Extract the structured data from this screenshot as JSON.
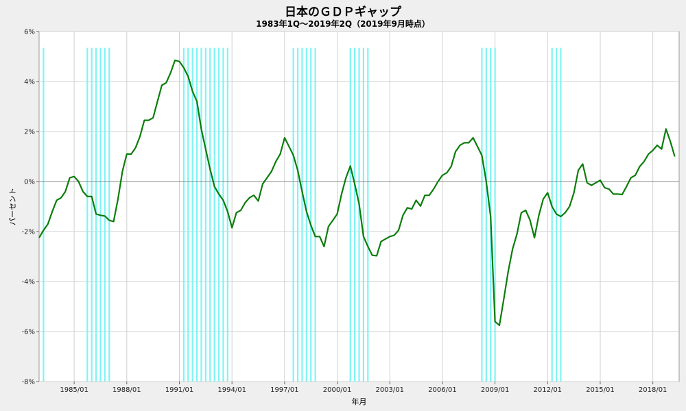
{
  "chart_data": {
    "type": "line",
    "title": "日本のＧＤＰギャップ",
    "subtitle": "1983年1Q～2019年2Q（2019年9月時点）",
    "xlabel": "年月",
    "ylabel": "パーセント",
    "ylim": [
      -8,
      6
    ],
    "yticks": [
      6,
      4,
      2,
      0,
      -2,
      -4,
      -6,
      -8
    ],
    "ytick_labels": [
      "6%",
      "4%",
      "2%",
      "0%",
      "-2%",
      "-4%",
      "-6%",
      "-8%"
    ],
    "xlim": [
      1983.0,
      2019.5
    ],
    "xticks": [
      1985,
      1988,
      1991,
      1994,
      1997,
      2000,
      2003,
      2006,
      2009,
      2012,
      2015,
      2018
    ],
    "xtick_labels": [
      "1985/01",
      "1988/01",
      "1991/01",
      "1994/01",
      "1997/01",
      "2000/01",
      "2003/01",
      "2006/01",
      "2009/01",
      "2012/01",
      "2015/01",
      "2018/01"
    ],
    "grid": true,
    "colors": {
      "line": "#0a7d0a",
      "band": "#7ff4f4",
      "zero": "#888888",
      "grid": "#d0d0d0"
    },
    "recession_quarters": [
      1983.25,
      1985.75,
      1986.0,
      1986.25,
      1986.5,
      1986.75,
      1987.0,
      1991.25,
      1991.5,
      1991.75,
      1992.0,
      1992.25,
      1992.5,
      1992.75,
      1993.0,
      1993.25,
      1993.5,
      1993.75,
      1997.5,
      1997.75,
      1998.0,
      1998.25,
      1998.5,
      1998.75,
      2000.75,
      2001.0,
      2001.25,
      2001.5,
      2001.75,
      2008.25,
      2008.5,
      2008.75,
      2009.0,
      2012.25,
      2012.5,
      2012.75
    ],
    "series": [
      {
        "x": [
          1983.0,
          1983.25,
          1983.5,
          1983.75,
          1984.0,
          1984.25,
          1984.5,
          1984.75,
          1985.0,
          1985.25,
          1985.5,
          1985.75,
          1986.0,
          1986.25,
          1986.5,
          1986.75,
          1987.0,
          1987.25,
          1987.5,
          1987.75,
          1988.0,
          1988.25,
          1988.5,
          1988.75,
          1989.0,
          1989.25,
          1989.5,
          1989.75,
          1990.0,
          1990.25,
          1990.5,
          1990.75,
          1991.0,
          1991.25,
          1991.5,
          1991.75,
          1992.0,
          1992.25,
          1992.5,
          1992.75,
          1993.0,
          1993.25,
          1993.5,
          1993.75,
          1994.0,
          1994.25,
          1994.5,
          1994.75,
          1995.0,
          1995.25,
          1995.5,
          1995.75,
          1996.0,
          1996.25,
          1996.5,
          1996.75,
          1997.0,
          1997.25,
          1997.5,
          1997.75,
          1998.0,
          1998.25,
          1998.5,
          1998.75,
          1999.0,
          1999.25,
          1999.5,
          1999.75,
          2000.0,
          2000.25,
          2000.5,
          2000.75,
          2001.0,
          2001.25,
          2001.5,
          2001.75,
          2002.0,
          2002.25,
          2002.5,
          2002.75,
          2003.0,
          2003.25,
          2003.5,
          2003.75,
          2004.0,
          2004.25,
          2004.5,
          2004.75,
          2005.0,
          2005.25,
          2005.5,
          2005.75,
          2006.0,
          2006.25,
          2006.5,
          2006.75,
          2007.0,
          2007.25,
          2007.5,
          2007.75,
          2008.0,
          2008.25,
          2008.5,
          2008.75,
          2009.0,
          2009.25,
          2009.5,
          2009.75,
          2010.0,
          2010.25,
          2010.5,
          2010.75,
          2011.0,
          2011.25,
          2011.5,
          2011.75,
          2012.0,
          2012.25,
          2012.5,
          2012.75,
          2013.0,
          2013.25,
          2013.5,
          2013.75,
          2014.0,
          2014.25,
          2014.5,
          2014.75,
          2015.0,
          2015.25,
          2015.5,
          2015.75,
          2016.0,
          2016.25,
          2016.5,
          2016.75,
          2017.0,
          2017.25,
          2017.5,
          2017.75,
          2018.0,
          2018.25,
          2018.5,
          2018.75,
          2019.0,
          2019.25
        ],
        "values": [
          -2.25,
          -1.95,
          -1.7,
          -1.2,
          -0.75,
          -0.65,
          -0.4,
          0.15,
          0.2,
          0.0,
          -0.4,
          -0.6,
          -0.6,
          -1.3,
          -1.35,
          -1.38,
          -1.55,
          -1.6,
          -0.7,
          0.4,
          1.1,
          1.1,
          1.35,
          1.8,
          2.45,
          2.45,
          2.55,
          3.2,
          3.85,
          3.95,
          4.35,
          4.85,
          4.8,
          4.55,
          4.2,
          3.6,
          3.2,
          2.1,
          1.3,
          0.5,
          -0.2,
          -0.5,
          -0.75,
          -1.2,
          -1.85,
          -1.25,
          -1.15,
          -0.85,
          -0.65,
          -0.55,
          -0.78,
          -0.1,
          0.15,
          0.4,
          0.8,
          1.1,
          1.75,
          1.4,
          1.05,
          0.45,
          -0.4,
          -1.2,
          -1.75,
          -2.2,
          -2.2,
          -2.6,
          -1.8,
          -1.55,
          -1.3,
          -0.5,
          0.15,
          0.62,
          -0.1,
          -0.9,
          -2.2,
          -2.6,
          -2.95,
          -2.97,
          -2.4,
          -2.3,
          -2.2,
          -2.15,
          -1.95,
          -1.35,
          -1.05,
          -1.1,
          -0.75,
          -0.98,
          -0.55,
          -0.55,
          -0.3,
          0.0,
          0.25,
          0.35,
          0.6,
          1.2,
          1.45,
          1.55,
          1.55,
          1.75,
          1.4,
          1.05,
          0.0,
          -1.4,
          -5.6,
          -5.75,
          -4.7,
          -3.6,
          -2.7,
          -2.1,
          -1.25,
          -1.15,
          -1.55,
          -2.25,
          -1.35,
          -0.7,
          -0.45,
          -1.0,
          -1.3,
          -1.4,
          -1.25,
          -1.0,
          -0.45,
          0.45,
          0.7,
          -0.05,
          -0.15,
          -0.05,
          0.05,
          -0.25,
          -0.3,
          -0.5,
          -0.5,
          -0.52,
          -0.2,
          0.15,
          0.25,
          0.6,
          0.8,
          1.1,
          1.25,
          1.45,
          1.3,
          2.1,
          1.6,
          1.0
        ]
      }
    ]
  }
}
